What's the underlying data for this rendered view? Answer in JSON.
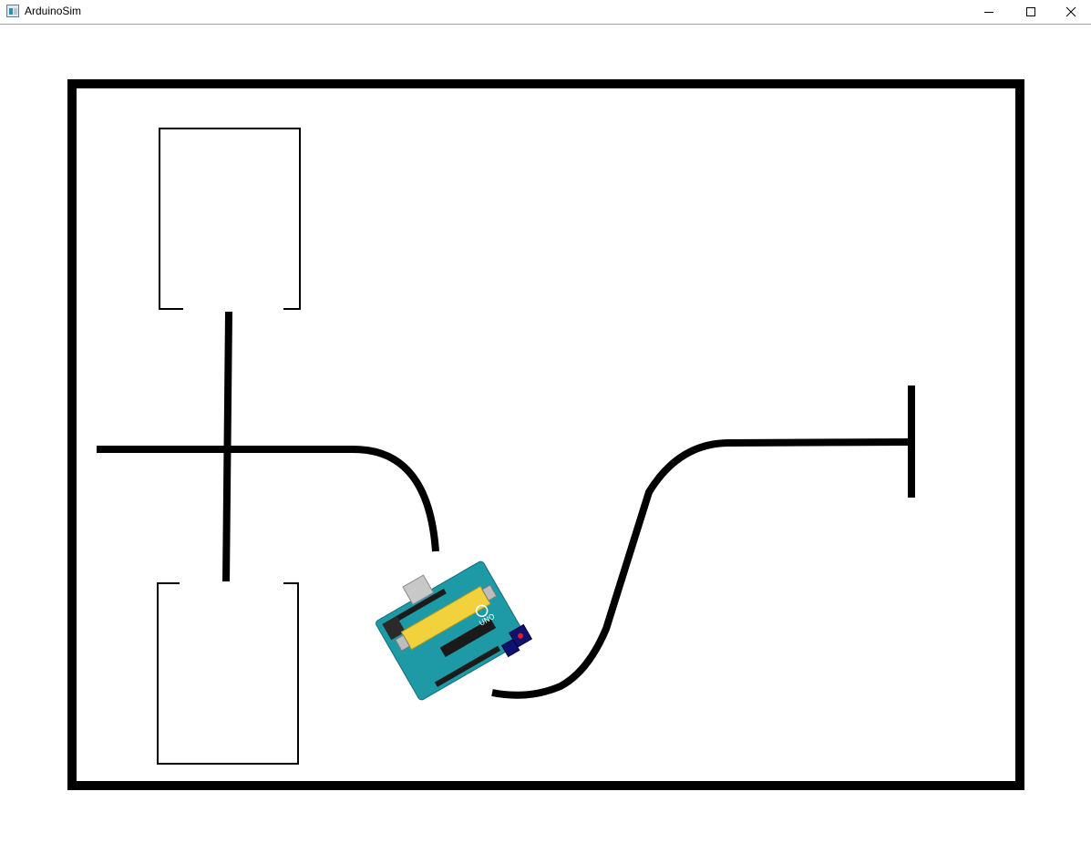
{
  "window": {
    "title": "ArduinoSim",
    "icons": {
      "app": "app-window-icon",
      "minimize": "minimize-icon",
      "maximize": "maximize-icon",
      "close": "close-icon"
    }
  },
  "scene": {
    "background": "#ffffff",
    "wall_color": "#000000",
    "track_color": "#000000",
    "board": {
      "type": "Arduino UNO",
      "pcb_color": "#1e9aa6",
      "shield_color": "#f2d23c",
      "sensor_color": "#10106e",
      "led_color": "#e02020",
      "logo_text": "UNO"
    }
  }
}
